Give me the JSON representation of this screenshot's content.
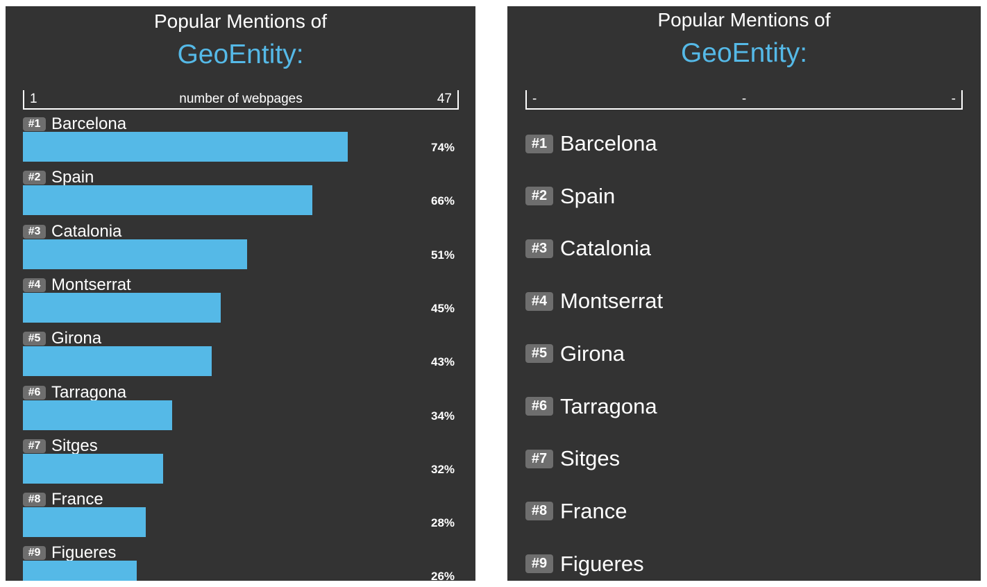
{
  "left": {
    "title": "Popular Mentions of",
    "entity": "GeoEntity:",
    "axis": {
      "min": "1",
      "label": "number of webpages",
      "max": "47"
    },
    "items": [
      {
        "rank": "#1",
        "name": "Barcelona",
        "percent": "74%",
        "value": 74
      },
      {
        "rank": "#2",
        "name": "Spain",
        "percent": "66%",
        "value": 66
      },
      {
        "rank": "#3",
        "name": "Catalonia",
        "percent": "51%",
        "value": 51
      },
      {
        "rank": "#4",
        "name": "Montserrat",
        "percent": "45%",
        "value": 45
      },
      {
        "rank": "#5",
        "name": "Girona",
        "percent": "43%",
        "value": 43
      },
      {
        "rank": "#6",
        "name": "Tarragona",
        "percent": "34%",
        "value": 34
      },
      {
        "rank": "#7",
        "name": "Sitges",
        "percent": "32%",
        "value": 32
      },
      {
        "rank": "#8",
        "name": "France",
        "percent": "28%",
        "value": 28
      },
      {
        "rank": "#9",
        "name": "Figueres",
        "percent": "26%",
        "value": 26
      }
    ]
  },
  "right": {
    "title": "Popular Mentions of",
    "entity": "GeoEntity:",
    "axis": {
      "min": "-",
      "label": "-",
      "max": "-"
    },
    "items": [
      {
        "rank": "#1",
        "name": "Barcelona"
      },
      {
        "rank": "#2",
        "name": "Spain"
      },
      {
        "rank": "#3",
        "name": "Catalonia"
      },
      {
        "rank": "#4",
        "name": "Montserrat"
      },
      {
        "rank": "#5",
        "name": "Girona"
      },
      {
        "rank": "#6",
        "name": "Tarragona"
      },
      {
        "rank": "#7",
        "name": "Sitges"
      },
      {
        "rank": "#8",
        "name": "France"
      },
      {
        "rank": "#9",
        "name": "Figueres"
      }
    ]
  },
  "colors": {
    "panel_bg": "#333333",
    "accent": "#55b9e7",
    "badge_bg": "#6e6e6e",
    "text": "#ffffff"
  }
}
